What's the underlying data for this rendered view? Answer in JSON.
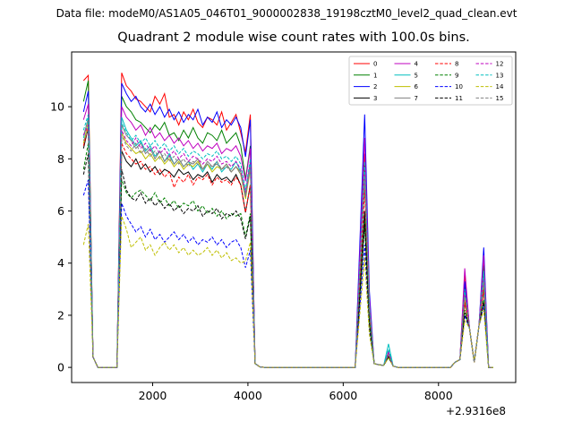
{
  "suptitle": "Data file: modeM0/AS1A05_046T01_9000002838_19198cztM0_level2_quad_clean.evt",
  "chart_data": {
    "type": "line",
    "title": "Quadrant 2 module wise count rates with 100.0s bins.",
    "x_offset_label": "+2.9316e8",
    "xlim": [
      300,
      9620
    ],
    "ylim": [
      -0.58,
      12.1
    ],
    "xticks": [
      2000,
      4000,
      6000,
      8000
    ],
    "yticks": [
      0,
      2,
      4,
      6,
      8,
      10
    ],
    "grid": false,
    "legend_placement": "top-right",
    "legend_columns": 4,
    "x": [
      550,
      650,
      750,
      850,
      950,
      1050,
      1150,
      1250,
      1350,
      1450,
      1550,
      1650,
      1750,
      1850,
      1950,
      2050,
      2150,
      2250,
      2350,
      2450,
      2550,
      2650,
      2750,
      2850,
      2950,
      3050,
      3150,
      3250,
      3350,
      3450,
      3550,
      3650,
      3750,
      3850,
      3950,
      4050,
      4150,
      4250,
      4350,
      4450,
      4550,
      4650,
      4750,
      4850,
      4950,
      5050,
      5150,
      5250,
      5350,
      5450,
      5550,
      5650,
      5750,
      5850,
      5950,
      6050,
      6150,
      6250,
      6350,
      6450,
      6550,
      6650,
      6750,
      6850,
      6950,
      7050,
      7150,
      7250,
      7350,
      7450,
      7550,
      7650,
      7750,
      7850,
      7950,
      8050,
      8150,
      8250,
      8350,
      8450,
      8550,
      8650,
      8750,
      8850,
      8950,
      9050,
      9150
    ],
    "series": [
      {
        "name": "0",
        "color": "#ff0000",
        "dash": false,
        "plateau": [
          11.3,
          10.8,
          10.6,
          10.3,
          10.2,
          10.0,
          9.8,
          10.4,
          10.1,
          10.5,
          9.6,
          9.7,
          9.3,
          9.8,
          9.5,
          9.9,
          9.4,
          9.2,
          9.6,
          9.5,
          9.3,
          9.8,
          9.1,
          9.4,
          9.7,
          9.0
        ],
        "start": 11.0,
        "second": 11.2,
        "p1": 8.2,
        "p2": 0.55,
        "p3": 3.6,
        "p4": 4.1,
        "end": 9.7
      },
      {
        "name": "1",
        "color": "#008000",
        "dash": false,
        "plateau": [
          10.4,
          10.0,
          9.8,
          9.5,
          9.4,
          9.2,
          9.0,
          9.3,
          9.1,
          9.4,
          8.9,
          9.0,
          8.7,
          9.1,
          8.8,
          9.2,
          8.8,
          8.6,
          9.0,
          8.9,
          8.7,
          9.1,
          8.6,
          8.8,
          9.0,
          8.5
        ],
        "start": 10.2,
        "second": 11.0,
        "p1": 7.8,
        "p2": 0.5,
        "p3": 3.2,
        "p4": 3.9,
        "end": 8.5
      },
      {
        "name": "2",
        "color": "#0000ff",
        "dash": false,
        "plateau": [
          10.9,
          10.5,
          10.2,
          10.4,
          10.0,
          9.8,
          10.1,
          9.7,
          10.0,
          9.6,
          9.9,
          9.5,
          9.8,
          9.4,
          9.7,
          9.5,
          9.9,
          9.3,
          9.6,
          9.4,
          9.8,
          9.2,
          9.5,
          9.3,
          9.6,
          9.2
        ],
        "start": 9.8,
        "second": 10.6,
        "p1": 9.7,
        "p2": 0.6,
        "p3": 3.3,
        "p4": 4.6,
        "end": 9.5
      },
      {
        "name": "3",
        "color": "#000000",
        "dash": false,
        "plateau": [
          8.3,
          7.9,
          7.7,
          8.0,
          7.6,
          7.8,
          7.5,
          7.7,
          7.4,
          7.6,
          7.5,
          7.3,
          7.6,
          7.4,
          7.5,
          7.2,
          7.4,
          7.3,
          7.5,
          7.1,
          7.4,
          7.2,
          7.3,
          7.1,
          7.4,
          7.0
        ],
        "start": 8.4,
        "second": 9.2,
        "p1": 6.0,
        "p2": 0.45,
        "p3": 2.5,
        "p4": 3.0,
        "end": 7.0
      },
      {
        "name": "4",
        "color": "#bf00bf",
        "dash": false,
        "plateau": [
          10.0,
          9.6,
          9.4,
          9.1,
          9.3,
          8.9,
          9.2,
          8.8,
          9.0,
          8.7,
          8.9,
          8.6,
          8.8,
          8.5,
          8.7,
          8.4,
          8.6,
          8.3,
          8.5,
          8.4,
          8.6,
          8.2,
          8.4,
          8.3,
          8.5,
          8.1
        ],
        "start": 9.5,
        "second": 10.1,
        "p1": 8.8,
        "p2": 0.6,
        "p3": 3.8,
        "p4": 4.3,
        "end": 8.4
      },
      {
        "name": "5",
        "color": "#00bfbf",
        "dash": false,
        "plateau": [
          9.6,
          9.1,
          8.8,
          8.5,
          8.7,
          8.3,
          8.5,
          8.1,
          8.3,
          7.9,
          8.2,
          7.8,
          8.0,
          7.7,
          7.9,
          7.6,
          7.8,
          7.5,
          7.8,
          7.6,
          7.9,
          7.5,
          7.7,
          7.6,
          7.9,
          7.5
        ],
        "start": 8.8,
        "second": 9.6,
        "p1": 7.5,
        "p2": 0.9,
        "p3": 2.8,
        "p4": 3.6,
        "end": 7.8
      },
      {
        "name": "6",
        "color": "#bfbf00",
        "dash": false,
        "plateau": [
          9.0,
          8.6,
          8.4,
          8.2,
          8.3,
          8.0,
          8.2,
          7.9,
          8.1,
          7.8,
          8.0,
          7.7,
          7.9,
          7.6,
          7.8,
          7.7,
          7.9,
          7.6,
          7.8,
          7.5,
          7.7,
          7.6,
          7.8,
          7.5,
          7.7,
          7.4
        ],
        "start": 8.6,
        "second": 9.4,
        "p1": 7.2,
        "p2": 0.5,
        "p3": 2.6,
        "p4": 3.2,
        "end": 7.6
      },
      {
        "name": "7",
        "color": "#808080",
        "dash": false,
        "plateau": [
          9.3,
          8.9,
          8.7,
          8.4,
          8.6,
          8.2,
          8.4,
          8.0,
          8.3,
          7.9,
          8.1,
          7.8,
          8.0,
          7.7,
          7.9,
          7.8,
          8.0,
          7.6,
          7.9,
          7.7,
          7.8,
          7.6,
          7.8,
          7.5,
          7.7,
          7.5
        ],
        "start": 8.9,
        "second": 9.5,
        "p1": 7.4,
        "p2": 0.5,
        "p3": 2.9,
        "p4": 3.4,
        "end": 7.7
      },
      {
        "name": "8",
        "color": "#ff0000",
        "dash": true,
        "plateau": [
          8.6,
          8.2,
          8.0,
          7.8,
          7.9,
          7.6,
          7.7,
          7.4,
          7.6,
          7.3,
          7.5,
          6.9,
          7.3,
          7.1,
          7.4,
          7.0,
          7.3,
          7.2,
          7.4,
          7.0,
          7.3,
          7.1,
          7.2,
          7.0,
          7.3,
          7.0
        ],
        "start": 8.5,
        "second": 9.2,
        "p1": 6.8,
        "p2": 0.45,
        "p3": 2.5,
        "p4": 3.0,
        "end": 7.0
      },
      {
        "name": "9",
        "color": "#008000",
        "dash": true,
        "plateau": [
          7.2,
          6.7,
          6.5,
          6.7,
          6.8,
          6.6,
          6.4,
          6.7,
          6.3,
          6.5,
          6.2,
          6.4,
          6.1,
          6.3,
          6.2,
          6.4,
          6.0,
          6.2,
          5.9,
          6.1,
          5.8,
          6.0,
          5.7,
          5.9,
          5.8,
          5.9
        ],
        "start": 7.6,
        "second": 8.6,
        "p1": 5.6,
        "p2": 0.4,
        "p3": 2.2,
        "p4": 2.6,
        "end": 5.9
      },
      {
        "name": "10",
        "color": "#0000ff",
        "dash": true,
        "plateau": [
          6.3,
          5.8,
          5.5,
          5.2,
          5.4,
          5.0,
          5.3,
          4.9,
          5.1,
          4.8,
          5.0,
          5.2,
          4.9,
          5.1,
          4.8,
          5.0,
          4.7,
          4.9,
          4.8,
          5.0,
          4.7,
          4.9,
          4.6,
          4.8,
          4.9,
          4.6
        ],
        "start": 6.6,
        "second": 7.2,
        "p1": 4.7,
        "p2": 0.4,
        "p3": 2.0,
        "p4": 2.4,
        "end": 4.5
      },
      {
        "name": "11",
        "color": "#000000",
        "dash": true,
        "plateau": [
          7.6,
          6.8,
          6.5,
          6.4,
          6.7,
          6.3,
          6.5,
          6.2,
          6.4,
          6.1,
          6.3,
          6.0,
          6.2,
          5.9,
          6.1,
          6.0,
          6.2,
          5.8,
          6.0,
          5.9,
          6.1,
          5.7,
          5.9,
          5.8,
          6.0,
          5.7
        ],
        "start": 7.4,
        "second": 8.2,
        "p1": 5.5,
        "p2": 0.4,
        "p3": 2.1,
        "p4": 2.5,
        "end": 5.8
      },
      {
        "name": "12",
        "color": "#bf00bf",
        "dash": true,
        "plateau": [
          9.1,
          8.7,
          8.5,
          8.8,
          8.4,
          8.6,
          8.3,
          8.5,
          8.2,
          8.4,
          8.1,
          8.3,
          8.0,
          8.2,
          7.9,
          8.1,
          8.0,
          7.8,
          8.0,
          7.9,
          8.1,
          7.8,
          7.9,
          7.7,
          7.9,
          7.6
        ],
        "start": 8.9,
        "second": 9.3,
        "p1": 7.6,
        "p2": 0.55,
        "p3": 2.9,
        "p4": 3.5,
        "end": 7.9
      },
      {
        "name": "13",
        "color": "#00bfbf",
        "dash": true,
        "plateau": [
          9.4,
          9.0,
          8.7,
          8.9,
          8.6,
          8.8,
          8.5,
          8.7,
          8.4,
          8.6,
          8.3,
          8.5,
          8.2,
          8.4,
          8.1,
          8.3,
          8.2,
          8.0,
          8.2,
          8.1,
          8.3,
          8.0,
          8.1,
          7.9,
          8.1,
          7.8
        ],
        "start": 9.1,
        "second": 9.7,
        "p1": 7.9,
        "p2": 0.7,
        "p3": 3.0,
        "p4": 3.7,
        "end": 8.0
      },
      {
        "name": "14",
        "color": "#bfbf00",
        "dash": true,
        "plateau": [
          5.8,
          5.3,
          4.6,
          4.8,
          5.0,
          4.5,
          4.7,
          4.3,
          4.6,
          4.8,
          4.5,
          4.7,
          4.4,
          4.6,
          4.3,
          4.5,
          4.3,
          4.4,
          4.6,
          4.3,
          4.5,
          4.2,
          4.4,
          4.1,
          4.2,
          4.0
        ],
        "start": 4.7,
        "second": 5.5,
        "p1": 4.2,
        "p2": 0.35,
        "p3": 1.8,
        "p4": 2.2,
        "end": 4.8
      },
      {
        "name": "15",
        "color": "#808080",
        "dash": true,
        "plateau": [
          8.9,
          8.5,
          8.3,
          8.6,
          8.2,
          8.4,
          8.1,
          8.3,
          8.0,
          8.2,
          7.9,
          8.1,
          7.8,
          8.0,
          7.7,
          7.9,
          7.8,
          7.6,
          7.8,
          7.7,
          7.9,
          7.6,
          7.7,
          7.5,
          7.7,
          7.4
        ],
        "start": 8.7,
        "second": 9.1,
        "p1": 7.3,
        "p2": 0.5,
        "p3": 2.8,
        "p4": 3.3,
        "end": 7.7
      }
    ]
  }
}
